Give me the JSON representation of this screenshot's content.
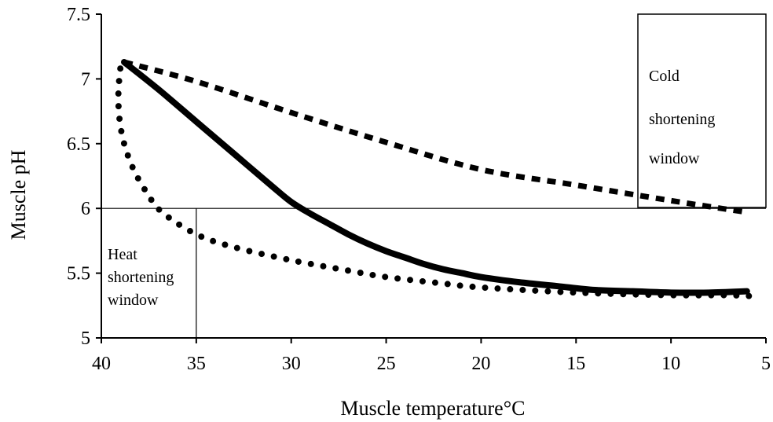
{
  "chart_data": {
    "type": "line",
    "title": "",
    "xlabel": "Muscle temperature°C",
    "ylabel": "Muscle pH",
    "xlim": [
      40,
      5
    ],
    "ylim": [
      5,
      7.5
    ],
    "x_reversed": true,
    "grid": false,
    "legend": "none",
    "xticks": [
      40,
      35,
      30,
      25,
      20,
      15,
      10,
      5
    ],
    "yticks": [
      5,
      5.5,
      6,
      6.5,
      7,
      7.5
    ],
    "xtick_labels": [
      "40",
      "35",
      "30",
      "25",
      "20",
      "15",
      "10",
      "5"
    ],
    "ytick_labels": [
      "5",
      "5.5",
      "6",
      "6.5",
      "7",
      "7.5"
    ],
    "series": [
      {
        "style": "solid",
        "points": [
          [
            38.8,
            7.13
          ],
          [
            37,
            6.92
          ],
          [
            35,
            6.67
          ],
          [
            33,
            6.42
          ],
          [
            31,
            6.17
          ],
          [
            30,
            6.05
          ],
          [
            29,
            5.96
          ],
          [
            28,
            5.88
          ],
          [
            27,
            5.8
          ],
          [
            26,
            5.73
          ],
          [
            25,
            5.67
          ],
          [
            24,
            5.62
          ],
          [
            23,
            5.57
          ],
          [
            22,
            5.53
          ],
          [
            21,
            5.5
          ],
          [
            20,
            5.47
          ],
          [
            18,
            5.43
          ],
          [
            16,
            5.4
          ],
          [
            14,
            5.37
          ],
          [
            12,
            5.36
          ],
          [
            10,
            5.35
          ],
          [
            8,
            5.35
          ],
          [
            6,
            5.36
          ]
        ]
      },
      {
        "style": "dashed",
        "points": [
          [
            38.8,
            7.13
          ],
          [
            35,
            6.98
          ],
          [
            30,
            6.74
          ],
          [
            25,
            6.51
          ],
          [
            20,
            6.3
          ],
          [
            15,
            6.18
          ],
          [
            10,
            6.06
          ],
          [
            6,
            5.97
          ]
        ]
      },
      {
        "style": "dotted",
        "points": [
          [
            39,
            7.08
          ],
          [
            39.1,
            6.9
          ],
          [
            39.05,
            6.7
          ],
          [
            38.8,
            6.5
          ],
          [
            38.3,
            6.3
          ],
          [
            37.6,
            6.12
          ],
          [
            36.8,
            5.97
          ],
          [
            35,
            5.8
          ],
          [
            33,
            5.7
          ],
          [
            30,
            5.6
          ],
          [
            27,
            5.52
          ],
          [
            25,
            5.47
          ],
          [
            22,
            5.42
          ],
          [
            20,
            5.39
          ],
          [
            15,
            5.35
          ],
          [
            10,
            5.33
          ],
          [
            7,
            5.33
          ],
          [
            5.5,
            5.32
          ]
        ]
      }
    ],
    "reference_lines": [
      {
        "orientation": "horizontal",
        "y": 6
      },
      {
        "orientation": "vertical",
        "x": 35,
        "y_from": 5,
        "y_to": 6
      }
    ],
    "annotations": {
      "heat": {
        "lines": [
          "Heat",
          "shortening",
          "window"
        ]
      },
      "cold": {
        "lines": [
          "Cold",
          "shortening",
          "window"
        ]
      }
    }
  }
}
